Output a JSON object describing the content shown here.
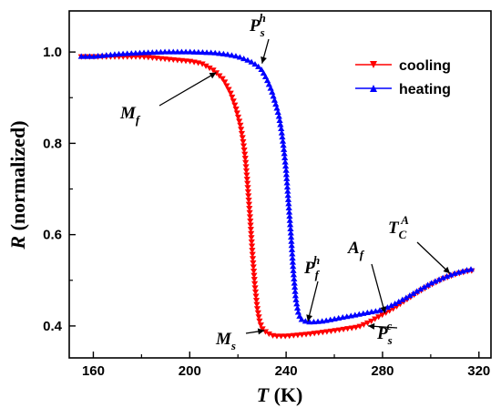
{
  "chart_data": {
    "type": "line",
    "title": "",
    "xlabel": {
      "var": "T",
      "unit": " (K)"
    },
    "ylabel": {
      "var": "R",
      "unit": " (normalized)"
    },
    "xlim": [
      150,
      325
    ],
    "ylim": [
      0.33,
      1.09
    ],
    "xticks": [
      160,
      200,
      240,
      280,
      320
    ],
    "yticks": [
      0.4,
      0.6,
      0.8,
      1.0
    ],
    "ytick_labels": [
      "0.4",
      "0.6",
      "0.8",
      "1.0"
    ],
    "grid": false,
    "legend_position": "top-right",
    "series": [
      {
        "name": "cooling",
        "color": "#ff0000",
        "marker": "triangle-down",
        "x": [
          155,
          160,
          170,
          180,
          190,
          200,
          205,
          210,
          214,
          217,
          219,
          221,
          222,
          223,
          224,
          225,
          226,
          227,
          228,
          229,
          230,
          232,
          235,
          240,
          250,
          260,
          270,
          275,
          280,
          285,
          290,
          295,
          300,
          305,
          310,
          315,
          318
        ],
        "y": [
          0.99,
          0.99,
          0.99,
          0.99,
          0.985,
          0.98,
          0.975,
          0.96,
          0.94,
          0.91,
          0.88,
          0.84,
          0.81,
          0.77,
          0.71,
          0.64,
          0.56,
          0.49,
          0.44,
          0.41,
          0.395,
          0.385,
          0.378,
          0.378,
          0.383,
          0.39,
          0.398,
          0.41,
          0.425,
          0.44,
          0.458,
          0.475,
          0.49,
          0.503,
          0.513,
          0.52,
          0.522
        ]
      },
      {
        "name": "heating",
        "color": "#0000ff",
        "marker": "triangle-up",
        "x": [
          155,
          160,
          170,
          180,
          190,
          200,
          210,
          215,
          220,
          225,
          228,
          230,
          232,
          234,
          236,
          237,
          238,
          239,
          240,
          241,
          242,
          243,
          244,
          245,
          246,
          248,
          250,
          255,
          260,
          270,
          280,
          285,
          290,
          295,
          300,
          305,
          310,
          315,
          318
        ],
        "y": [
          0.99,
          0.99,
          0.995,
          0.998,
          1.0,
          1.0,
          0.998,
          0.995,
          0.99,
          0.98,
          0.97,
          0.96,
          0.94,
          0.915,
          0.88,
          0.86,
          0.83,
          0.79,
          0.74,
          0.67,
          0.6,
          0.52,
          0.46,
          0.43,
          0.415,
          0.41,
          0.408,
          0.41,
          0.415,
          0.425,
          0.435,
          0.448,
          0.462,
          0.478,
          0.493,
          0.505,
          0.515,
          0.522,
          0.525
        ]
      }
    ],
    "annotations": [
      {
        "base": "P",
        "sub": "s",
        "sup": "h",
        "at": [
          230,
          0.975
        ]
      },
      {
        "base": "M",
        "sub": "f",
        "sup": "",
        "at": [
          211,
          0.955
        ]
      },
      {
        "base": "P",
        "sub": "f",
        "sup": "h",
        "at": [
          249,
          0.41
        ]
      },
      {
        "base": "A",
        "sub": "f",
        "sup": "",
        "at": [
          281,
          0.428
        ]
      },
      {
        "base": "T",
        "sub": "C",
        "sup": "A",
        "at": [
          308,
          0.515
        ]
      },
      {
        "base": "M",
        "sub": "s",
        "sup": "",
        "at": [
          231,
          0.39
        ]
      },
      {
        "base": "P",
        "sub": "s",
        "sup": "c",
        "at": [
          274,
          0.4
        ]
      }
    ]
  }
}
